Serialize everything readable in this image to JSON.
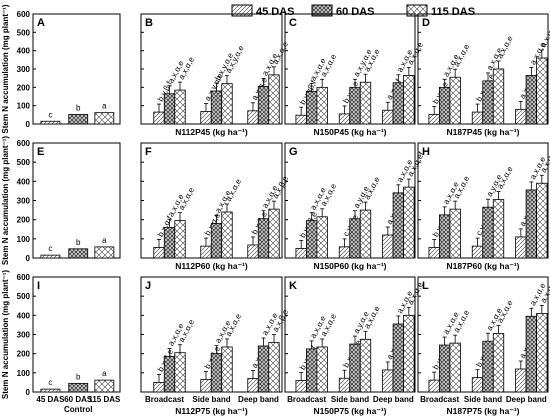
{
  "chart_data": {
    "type": "bar",
    "legend": [
      "45 DAS",
      "60 DAS",
      "115 DAS"
    ],
    "legend_position": "top-right",
    "ylabel": "Stem N accumulation (mg plant⁻¹)",
    "ylim": [
      0,
      600
    ],
    "yticks": [
      0,
      100,
      200,
      300,
      400,
      500,
      600
    ],
    "units_suffix": "(kg ha⁻¹)",
    "control_group_label": "Control",
    "placement_categories": [
      "Broadcast",
      "Side band",
      "Deep band"
    ],
    "control_categories": [
      "45 DAS",
      "60 DAS",
      "115 DAS"
    ],
    "panels": [
      {
        "letter": "A",
        "type": "control",
        "values": [
          15,
          52,
          62
        ],
        "labels": [
          "c",
          "b",
          "a"
        ]
      },
      {
        "letter": "B",
        "xlabel": "N112P45",
        "values": [
          [
            65,
            165,
            185
          ],
          [
            68,
            180,
            220
          ],
          [
            72,
            205,
            268
          ]
        ],
        "labels": [
          [
            "b,y,β,f",
            "a,x,α,e",
            "a,x,α,e"
          ],
          [
            "a,x,y,α,e",
            "b,x,y,α,e",
            "a,x,y,α,e"
          ],
          [
            "a,x,α,e",
            "a,x,α,e",
            "a,x,α,e"
          ]
        ]
      },
      {
        "letter": "C",
        "xlabel": "N150P45",
        "values": [
          [
            48,
            178,
            200
          ],
          [
            55,
            200,
            228
          ],
          [
            75,
            225,
            265
          ]
        ],
        "labels": [
          [
            "b,y,αβ,f",
            "a,x,α,e",
            "a,x,α,e"
          ],
          [
            "b,y,α,e",
            "a,x,y,α,e",
            "a,x,α,e"
          ],
          [
            "a,x,α,f",
            "a,x,α,e",
            "a,x,α,e"
          ]
        ]
      },
      {
        "letter": "D",
        "xlabel": "N187P45",
        "values": [
          [
            52,
            200,
            255
          ],
          [
            65,
            235,
            300
          ],
          [
            80,
            265,
            360
          ]
        ],
        "labels": [
          [
            "b,y,α,e",
            "a,x,α,e",
            "a,x,α,e"
          ],
          [
            "b,x,y,α,e",
            "a,x,α,e",
            "a,x,α,e"
          ],
          [
            "a,x,α,f",
            "a,x,α,e",
            "a,x,α,e"
          ]
        ]
      },
      {
        "letter": "E",
        "type": "control",
        "values": [
          15,
          48,
          58
        ],
        "labels": [
          "c",
          "b",
          "a"
        ]
      },
      {
        "letter": "F",
        "xlabel": "N112P60",
        "values": [
          [
            55,
            160,
            195
          ],
          [
            62,
            180,
            240
          ],
          [
            68,
            205,
            255
          ]
        ],
        "labels": [
          [
            "b,x,α,f",
            "a,x,α,e",
            "a,x,α,e"
          ],
          [
            "b,x,α,e",
            "a,x,α,e",
            "a,x,α,e"
          ],
          [
            "b,x,β,e",
            "a,x,α,e",
            "a,x,β,e"
          ]
        ]
      },
      {
        "letter": "G",
        "xlabel": "N150P60",
        "values": [
          [
            50,
            195,
            215
          ],
          [
            58,
            205,
            250
          ],
          [
            120,
            340,
            370
          ]
        ],
        "labels": [
          [
            "b,y,αβ,e",
            "a,x,α,e",
            "a,x,α,e"
          ],
          [
            "c,y,α,e",
            "a,y,α,e",
            "a,x,α,e"
          ],
          [
            "a,x,α,e",
            "a,x,α,e",
            "a,x,α,ef"
          ]
        ]
      },
      {
        "letter": "H",
        "xlabel": "N187P60",
        "values": [
          [
            55,
            225,
            255
          ],
          [
            62,
            265,
            305
          ],
          [
            110,
            355,
            390
          ]
        ],
        "labels": [
          [
            "b,y,α,e",
            "a,x,α,e",
            "a,x,α,e"
          ],
          [
            "c,y,α,e",
            "a,y,α,e",
            "a,x,α,e"
          ],
          [
            "a,x,α,e",
            "a,x,α,e",
            "a,x,α,e"
          ]
        ]
      },
      {
        "letter": "I",
        "type": "control",
        "values": [
          15,
          45,
          62
        ],
        "labels": [
          "c",
          "b",
          "a"
        ]
      },
      {
        "letter": "J",
        "xlabel": "N112P75",
        "values": [
          [
            50,
            185,
            205
          ],
          [
            65,
            200,
            235
          ],
          [
            70,
            240,
            258
          ]
        ],
        "labels": [
          [
            "b,x,β,e",
            "a,x,α,e",
            "a,x,α,e"
          ],
          [
            "b,x,β,e",
            "a,x,α,e",
            "a,x,α,e"
          ],
          [
            "a,x,β,e",
            "a,x,α,e",
            "a,x,β,e"
          ]
        ]
      },
      {
        "letter": "K",
        "xlabel": "N150P75",
        "values": [
          [
            60,
            225,
            235
          ],
          [
            72,
            250,
            275
          ],
          [
            115,
            355,
            400
          ]
        ],
        "labels": [
          [
            "b,y,αβ,f",
            "a,x,α,e",
            "a,x,α,e"
          ],
          [
            "b,x,y,α,e",
            "a,y,α,e",
            "a,x,α,e"
          ],
          [
            "a,x,α,e",
            "a,x,α,e",
            "a,x,α,e"
          ]
        ]
      },
      {
        "letter": "L",
        "xlabel": "N187P75",
        "values": [
          [
            62,
            245,
            255
          ],
          [
            75,
            265,
            305
          ],
          [
            120,
            395,
            410
          ]
        ],
        "labels": [
          [
            "b,y,α,e",
            "a,x,α,e",
            "a,x,α,e"
          ],
          [
            "b,x,α,e",
            "a,x,α,e",
            "a,x,α,e"
          ],
          [
            "a,x,α,e",
            "a,x,α,e",
            "a,x,α,e"
          ]
        ]
      }
    ]
  }
}
